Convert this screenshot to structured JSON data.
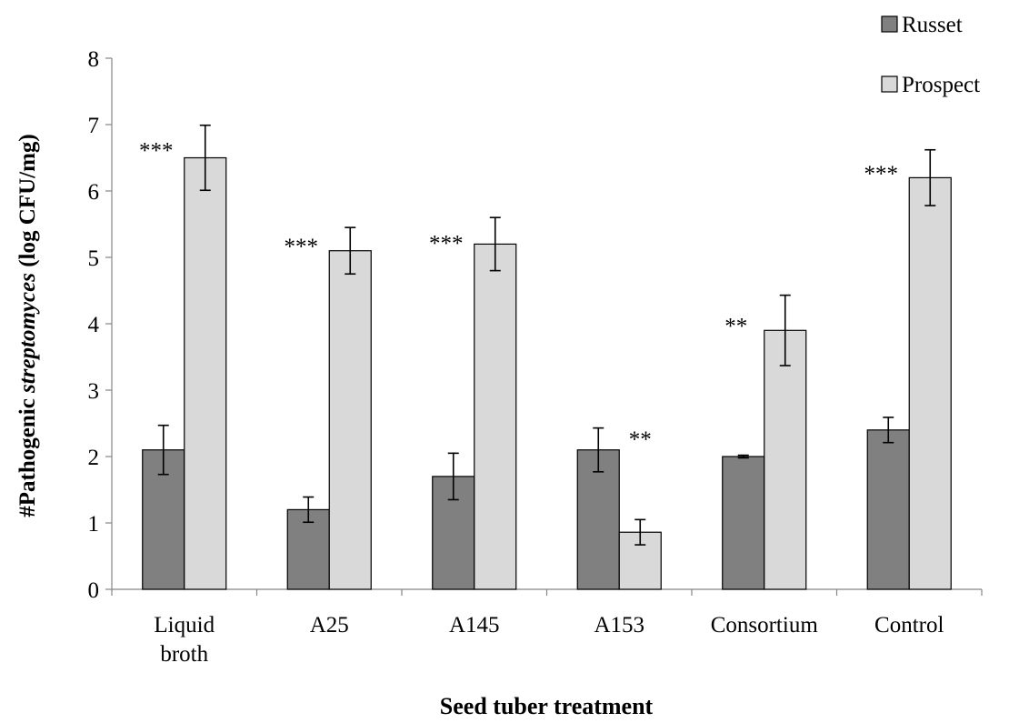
{
  "chart_data": {
    "type": "bar",
    "categories": [
      "Liquid broth",
      "A25",
      "A145",
      "A153",
      "Consortium",
      "Control"
    ],
    "category_lines": [
      [
        "Liquid",
        "broth"
      ],
      [
        "A25"
      ],
      [
        "A145"
      ],
      [
        "A153"
      ],
      [
        "Consortium"
      ],
      [
        "Control"
      ]
    ],
    "series": [
      {
        "name": "Russet",
        "color": "#808080",
        "values": [
          2.1,
          1.2,
          1.7,
          2.1,
          2.0,
          2.4
        ],
        "error": [
          0.37,
          0.19,
          0.35,
          0.33,
          0.02,
          0.19
        ]
      },
      {
        "name": "Prospect",
        "color": "#d9d9d9",
        "values": [
          6.5,
          5.1,
          5.2,
          0.86,
          3.9,
          6.2
        ],
        "error": [
          0.49,
          0.35,
          0.4,
          0.19,
          0.53,
          0.42
        ]
      }
    ],
    "annotations": [
      {
        "category": 0,
        "series": 0,
        "y": 6.75,
        "text": "***"
      },
      {
        "category": 1,
        "series": 0,
        "y": 5.3,
        "text": "***"
      },
      {
        "category": 2,
        "series": 0,
        "y": 5.35,
        "text": "***"
      },
      {
        "category": 3,
        "series": 1,
        "y": 2.4,
        "text": "**"
      },
      {
        "category": 4,
        "series": 0,
        "y": 4.1,
        "text": "**"
      },
      {
        "category": 5,
        "series": 0,
        "y": 6.4,
        "text": "***"
      }
    ],
    "title": "",
    "xlabel": "Seed tuber treatment",
    "ylabel_parts": [
      "#Pathogenic ",
      "streptomyces",
      " (log CFU/mg)"
    ],
    "ylim": [
      0,
      8
    ],
    "yticks": [
      "0",
      "1",
      "2",
      "3",
      "4",
      "5",
      "6",
      "7",
      "8"
    ],
    "grid": false,
    "legend_position": "top-right"
  }
}
